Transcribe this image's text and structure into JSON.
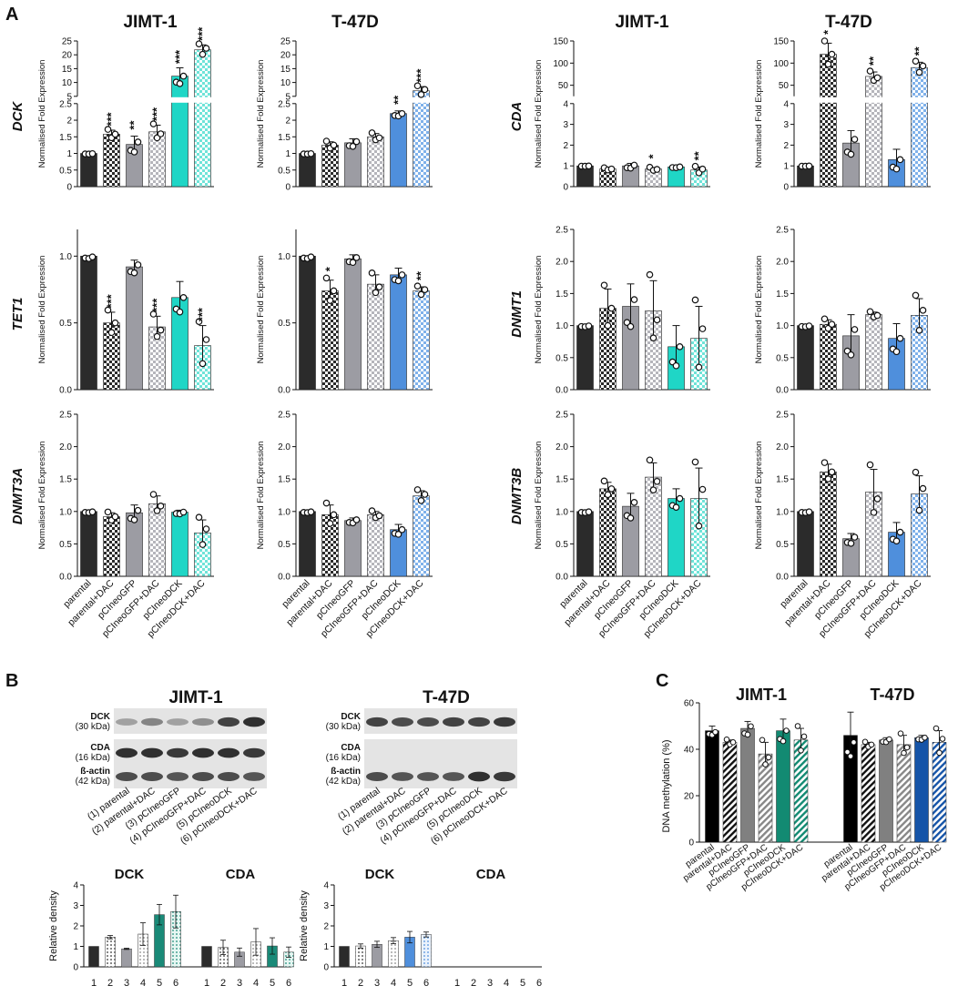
{
  "figure": {
    "panel_labels": [
      "A",
      "B",
      "C"
    ],
    "lines": [
      "JIMT-1",
      "T-47D"
    ],
    "groups": [
      "parental",
      "parental+DAC",
      "pCIneoGFP",
      "pCIneoGFP+DAC",
      "pCIneoDCK",
      "pCIneoDCK+DAC"
    ],
    "ylabel_expr": "Normalised Fold Expression",
    "genes_left": [
      "DCK",
      "TET1",
      "DNMT3A"
    ],
    "genes_right": [
      "CDA",
      "DNMT1",
      "DNMT3B"
    ]
  },
  "colors": {
    "parental": "#2b2b2b",
    "gfp": "#9c9ca3",
    "jimt_dck": "#1fd6c6",
    "t47d_dck": "#4f8fdc",
    "wb_dck_jimt": "#1a8a78",
    "c_jimt_dck": "#128a72",
    "c_t47d_dck": "#1554a8"
  },
  "chart_data": [
    {
      "id": "A-DCK-JIMT-1",
      "type": "bar",
      "title": "JIMT-1",
      "gene": "DCK",
      "ylabel": "Normalised Fold Expression",
      "categories": [
        "parental",
        "parental+DAC",
        "pCIneoGFP",
        "pCIneoGFP+DAC",
        "pCIneoDCK",
        "pCIneoDCK+DAC"
      ],
      "values": [
        1.0,
        1.58,
        1.27,
        1.65,
        12.3,
        21.8
      ],
      "errors": [
        0.02,
        0.12,
        0.25,
        0.2,
        3.0,
        1.8
      ],
      "significance": [
        "",
        "***",
        "**",
        "***",
        "***",
        "***"
      ],
      "yaxis": {
        "lower": [
          0,
          2.5
        ],
        "upper": [
          5,
          25
        ],
        "lower_ticks": [
          "0",
          "0.5",
          "1",
          "1.5",
          "2",
          "2.5"
        ],
        "upper_ticks": [
          "5",
          "10",
          "15",
          "20",
          "25"
        ]
      }
    },
    {
      "id": "A-DCK-T-47D",
      "type": "bar",
      "title": "T-47D",
      "gene": "DCK",
      "ylabel": "Normalised Fold Expression",
      "categories": [
        "parental",
        "parental+DAC",
        "pCIneoGFP",
        "pCIneoGFP+DAC",
        "pCIneoDCK",
        "pCIneoDCK+DAC"
      ],
      "values": [
        1.0,
        1.25,
        1.32,
        1.5,
        2.2,
        7.0
      ],
      "errors": [
        0.02,
        0.1,
        0.12,
        0.1,
        0.08,
        1.5
      ],
      "significance": [
        "",
        "",
        "",
        "",
        "**",
        "***"
      ],
      "yaxis": {
        "lower": [
          0,
          2.5
        ],
        "upper": [
          5,
          25
        ],
        "lower_ticks": [
          "0",
          "0.5",
          "1",
          "1.5",
          "2",
          "2.5"
        ],
        "upper_ticks": [
          "5",
          "10",
          "15",
          "20",
          "25"
        ]
      }
    },
    {
      "id": "A-CDA-JIMT-1",
      "type": "bar",
      "title": "JIMT-1",
      "gene": "CDA",
      "ylabel": "Normalised Fold Expression",
      "categories": [
        "parental",
        "parental+DAC",
        "pCIneoGFP",
        "pCIneoGFP+DAC",
        "pCIneoDCK",
        "pCIneoDCK+DAC"
      ],
      "values": [
        1.0,
        0.85,
        1.0,
        0.85,
        0.95,
        0.8
      ],
      "errors": [
        0.02,
        0.05,
        0.12,
        0.07,
        0.04,
        0.15
      ],
      "significance": [
        "",
        "",
        "",
        "*",
        "",
        "**"
      ],
      "yaxis": {
        "lower": [
          0,
          4
        ],
        "upper": [
          25,
          150
        ],
        "lower_ticks": [
          "0",
          "1",
          "2",
          "3",
          "4"
        ],
        "upper_ticks": [
          "50",
          "100",
          "150"
        ]
      }
    },
    {
      "id": "A-CDA-T-47D",
      "type": "bar",
      "title": "T-47D",
      "gene": "CDA",
      "ylabel": "Normalised Fold Expression",
      "categories": [
        "parental",
        "parental+DAC",
        "pCIneoGFP",
        "pCIneoGFP+DAC",
        "pCIneoDCK",
        "pCIneoDCK+DAC"
      ],
      "values": [
        1.0,
        120,
        2.1,
        70,
        1.3,
        90
      ],
      "errors": [
        0.02,
        25,
        0.6,
        10,
        0.5,
        12
      ],
      "significance": [
        "",
        "*",
        "",
        "**",
        "",
        "**"
      ],
      "yaxis": {
        "lower": [
          0,
          4
        ],
        "upper": [
          25,
          150
        ],
        "lower_ticks": [
          "0",
          "1",
          "2",
          "3",
          "4"
        ],
        "upper_ticks": [
          "50",
          "100",
          "150"
        ]
      }
    },
    {
      "id": "A-TET1-JIMT-1",
      "type": "bar",
      "gene": "TET1",
      "ylabel": "Normalised Fold Expression",
      "categories": [
        "parental",
        "parental+DAC",
        "pCIneoGFP",
        "pCIneoGFP+DAC",
        "pCIneoDCK",
        "pCIneoDCK+DAC"
      ],
      "values": [
        1.0,
        0.5,
        0.92,
        0.47,
        0.69,
        0.33
      ],
      "errors": [
        0.0,
        0.08,
        0.05,
        0.08,
        0.12,
        0.15
      ],
      "significance": [
        "",
        "***",
        "",
        "***",
        "",
        "***"
      ],
      "ylim": [
        0,
        1.2
      ],
      "ticks": [
        "0.0",
        "0.5",
        "1.0"
      ]
    },
    {
      "id": "A-TET1-T-47D",
      "type": "bar",
      "gene": "TET1",
      "ylabel": "Normalised Fold Expression",
      "categories": [
        "parental",
        "parental+DAC",
        "pCIneoGFP",
        "pCIneoGFP+DAC",
        "pCIneoDCK",
        "pCIneoDCK+DAC"
      ],
      "values": [
        1.0,
        0.74,
        0.98,
        0.79,
        0.86,
        0.74
      ],
      "errors": [
        0.0,
        0.08,
        0.03,
        0.07,
        0.05,
        0.03
      ],
      "significance": [
        "",
        "*",
        "",
        "",
        "",
        "**"
      ],
      "ylim": [
        0,
        1.2
      ],
      "ticks": [
        "0.0",
        "0.5",
        "1.0"
      ]
    },
    {
      "id": "A-DNMT1-JIMT-1",
      "type": "bar",
      "gene": "DNMT1",
      "ylabel": "Normalised Fold Expression",
      "categories": [
        "parental",
        "parental+DAC",
        "pCIneoGFP",
        "pCIneoGFP+DAC",
        "pCIneoDCK",
        "pCIneoDCK+DAC"
      ],
      "values": [
        1.0,
        1.27,
        1.3,
        1.23,
        0.67,
        0.8
      ],
      "errors": [
        0.0,
        0.3,
        0.35,
        0.47,
        0.33,
        0.5
      ],
      "significance": [
        "",
        "",
        "",
        "",
        "",
        ""
      ],
      "ylim": [
        0,
        2.5
      ],
      "ticks": [
        "0.0",
        "0.5",
        "1.0",
        "1.5",
        "2.0",
        "2.5"
      ]
    },
    {
      "id": "A-DNMT1-T-47D",
      "type": "bar",
      "gene": "DNMT1",
      "ylabel": "Normalised Fold Expression",
      "categories": [
        "parental",
        "parental+DAC",
        "pCIneoGFP",
        "pCIneoGFP+DAC",
        "pCIneoDCK",
        "pCIneoDCK+DAC"
      ],
      "values": [
        1.0,
        1.02,
        0.84,
        1.17,
        0.8,
        1.16
      ],
      "errors": [
        0.0,
        0.07,
        0.33,
        0.04,
        0.23,
        0.26
      ],
      "significance": [
        "",
        "",
        "",
        "",
        "",
        ""
      ],
      "ylim": [
        0,
        2.5
      ],
      "ticks": [
        "0.0",
        "0.5",
        "1.0",
        "1.5",
        "2.0",
        "2.5"
      ]
    },
    {
      "id": "A-DNMT3A-JIMT-1",
      "type": "bar",
      "gene": "DNMT3A",
      "ylabel": "Normalised Fold Expression",
      "categories": [
        "parental",
        "parental+DAC",
        "pCIneoGFP",
        "pCIneoGFP+DAC",
        "pCIneoDCK",
        "pCIneoDCK+DAC"
      ],
      "values": [
        1.0,
        0.92,
        0.98,
        1.12,
        0.99,
        0.67
      ],
      "errors": [
        0.0,
        0.06,
        0.12,
        0.12,
        0.03,
        0.2
      ],
      "significance": [
        "",
        "",
        "",
        "",
        "",
        ""
      ],
      "ylim": [
        0,
        2.5
      ],
      "ticks": [
        "0.0",
        "0.5",
        "1.0",
        "1.5",
        "2.0",
        "2.5"
      ]
    },
    {
      "id": "A-DNMT3A-T-47D",
      "type": "bar",
      "gene": "DNMT3A",
      "ylabel": "Normalised Fold Expression",
      "categories": [
        "parental",
        "parental+DAC",
        "pCIneoGFP",
        "pCIneoGFP+DAC",
        "pCIneoDCK",
        "pCIneoDCK+DAC"
      ],
      "values": [
        1.0,
        0.95,
        0.86,
        0.95,
        0.72,
        1.24
      ],
      "errors": [
        0.0,
        0.15,
        0.04,
        0.05,
        0.08,
        0.08
      ],
      "significance": [
        "",
        "",
        "",
        "",
        "",
        ""
      ],
      "ylim": [
        0,
        2.5
      ],
      "ticks": [
        "0.0",
        "0.5",
        "1.0",
        "1.5",
        "2.0",
        "2.5"
      ]
    },
    {
      "id": "A-DNMT3B-JIMT-1",
      "type": "bar",
      "gene": "DNMT3B",
      "ylabel": "Normalised Fold Expression",
      "categories": [
        "parental",
        "parental+DAC",
        "pCIneoGFP",
        "pCIneoGFP+DAC",
        "pCIneoDCK",
        "pCIneoDCK+DAC"
      ],
      "values": [
        1.0,
        1.35,
        1.08,
        1.53,
        1.2,
        1.2
      ],
      "errors": [
        0.0,
        0.1,
        0.2,
        0.22,
        0.15,
        0.47
      ],
      "significance": [
        "",
        "",
        "",
        "",
        "",
        ""
      ],
      "ylim": [
        0,
        2.5
      ],
      "ticks": [
        "0.0",
        "0.5",
        "1.0",
        "1.5",
        "2.0",
        "2.5"
      ]
    },
    {
      "id": "A-DNMT3B-T-47D",
      "type": "bar",
      "gene": "DNMT3B",
      "ylabel": "Normalised Fold Expression",
      "categories": [
        "parental",
        "parental+DAC",
        "pCIneoGFP",
        "pCIneoGFP+DAC",
        "pCIneoDCK",
        "pCIneoDCK+DAC"
      ],
      "values": [
        1.0,
        1.61,
        0.58,
        1.3,
        0.68,
        1.27
      ],
      "errors": [
        0.0,
        0.12,
        0.08,
        0.35,
        0.15,
        0.28
      ],
      "significance": [
        "",
        "",
        "",
        "",
        "",
        ""
      ],
      "ylim": [
        0,
        2.5
      ],
      "ticks": [
        "0.0",
        "0.5",
        "1.0",
        "1.5",
        "2.0",
        "2.5"
      ]
    },
    {
      "id": "B-density-JIMT-1",
      "type": "bar",
      "ylabel": "Relative density",
      "group_titles": [
        "DCK",
        "CDA"
      ],
      "categories": [
        "1",
        "2",
        "3",
        "4",
        "5",
        "6"
      ],
      "series": [
        {
          "name": "DCK",
          "values": [
            1.0,
            1.45,
            0.88,
            1.6,
            2.55,
            2.7
          ],
          "errors": [
            0,
            0.08,
            0.03,
            0.55,
            0.5,
            0.8
          ]
        },
        {
          "name": "CDA",
          "values": [
            1.0,
            0.95,
            0.72,
            1.22,
            1.02,
            0.72
          ],
          "errors": [
            0,
            0.35,
            0.2,
            0.65,
            0.4,
            0.25
          ]
        }
      ],
      "ylim": [
        0,
        4
      ],
      "ticks": [
        "0",
        "1",
        "2",
        "3",
        "4"
      ]
    },
    {
      "id": "B-density-T-47D",
      "type": "bar",
      "ylabel": "Relative density",
      "group_titles": [
        "DCK",
        "CDA"
      ],
      "categories": [
        "1",
        "2",
        "3",
        "4",
        "5",
        "6"
      ],
      "series": [
        {
          "name": "DCK",
          "values": [
            1.0,
            1.02,
            1.1,
            1.28,
            1.45,
            1.58
          ],
          "errors": [
            0,
            0.1,
            0.15,
            0.15,
            0.28,
            0.12
          ]
        },
        {
          "name": "CDA",
          "values": [
            0,
            0,
            0,
            0,
            0,
            0
          ],
          "errors": [
            0,
            0,
            0,
            0,
            0,
            0
          ]
        }
      ],
      "ylim": [
        0,
        4
      ],
      "ticks": [
        "0",
        "1",
        "2",
        "3",
        "4"
      ]
    },
    {
      "id": "C-methylation",
      "type": "bar",
      "ylabel": "DNA methylation (%)",
      "group_titles": [
        "JIMT-1",
        "T-47D"
      ],
      "categories": [
        "parental",
        "parental+DAC",
        "pCIneoGFP",
        "pCIneoGFP+DAC",
        "pCIneoDCK",
        "pCIneoDCK+DAC"
      ],
      "series": [
        {
          "name": "JIMT-1",
          "values": [
            48,
            43,
            49,
            38,
            48,
            44
          ],
          "errors": [
            2,
            1,
            3,
            5,
            5,
            5
          ]
        },
        {
          "name": "T-47D",
          "values": [
            46,
            42,
            44,
            42,
            45,
            43
          ],
          "errors": [
            10,
            1,
            1,
            4,
            1,
            5
          ]
        }
      ],
      "ylim": [
        0,
        60
      ],
      "ticks": [
        "0",
        "20",
        "40",
        "60"
      ]
    }
  ],
  "western": {
    "panels": [
      {
        "title": "JIMT-1",
        "rows": [
          {
            "name": "DCK",
            "kda": "(30 kDa)"
          },
          {
            "name": "CDA",
            "kda": "(16 kDa)"
          },
          {
            "name": "ß-actin",
            "kda": "(42 kDa)"
          }
        ],
        "lanes": [
          "(1) parental",
          "(2) parental+DAC",
          "(3) pCIneoGFP",
          "(4) pCIneoGFP+DAC",
          "(5) pCIneoDCK",
          "(6) pCIneoDCK+DAC"
        ],
        "band_intensity": [
          [
            0.35,
            0.5,
            0.35,
            0.45,
            0.85,
            0.95
          ],
          [
            0.95,
            0.95,
            0.9,
            0.95,
            0.95,
            0.9
          ],
          [
            0.8,
            0.8,
            0.75,
            0.8,
            0.8,
            0.75
          ]
        ]
      },
      {
        "title": "T-47D",
        "rows": [
          {
            "name": "DCK",
            "kda": "(30 kDa)"
          },
          {
            "name": "CDA",
            "kda": "(16 kDa)"
          },
          {
            "name": "ß-actin",
            "kda": "(42 kDa)"
          }
        ],
        "lanes": [
          "(1) parental",
          "(2) parental+DAC",
          "(3) pCIneoGFP",
          "(4) pCIneoGFP+DAC",
          "(5) pCIneoDCK",
          "(6) pCIneoDCK+DAC"
        ],
        "band_intensity": [
          [
            0.85,
            0.8,
            0.8,
            0.85,
            0.85,
            0.9
          ],
          [
            0,
            0,
            0,
            0,
            0,
            0
          ],
          [
            0.8,
            0.75,
            0.75,
            0.75,
            0.95,
            0.9
          ]
        ]
      }
    ]
  }
}
